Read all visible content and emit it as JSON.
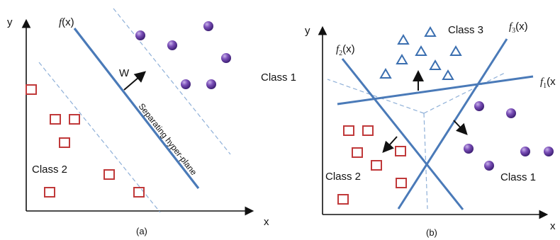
{
  "panel_a": {
    "axis_y": "y",
    "axis_x": "x",
    "func_label": "f",
    "func_arg": "(x)",
    "weight_label": "W",
    "hyperplane_label": "Separating hyper-plane",
    "class1_label": "Class 1",
    "class2_label": "Class 2",
    "caption": "(a)"
  },
  "panel_b": {
    "axis_y": "y",
    "axis_x": "x",
    "f1_label": "f",
    "f1_sub": "1",
    "f1_arg": "(x",
    "f2_label": "f",
    "f2_sub": "2",
    "f2_arg": "(x)",
    "f3_label": "f",
    "f3_sub": "3",
    "f3_arg": "(x)",
    "class1_label": "Class 1",
    "class2_label": "Class 2",
    "class3_label": "Class 3",
    "caption": "(b)"
  },
  "colors": {
    "line": "#4a7ab8",
    "dashed": "#8fb0d8",
    "square": "#c0393a",
    "circle": "#7b4fb8",
    "triangle": "#3b6fb0"
  }
}
